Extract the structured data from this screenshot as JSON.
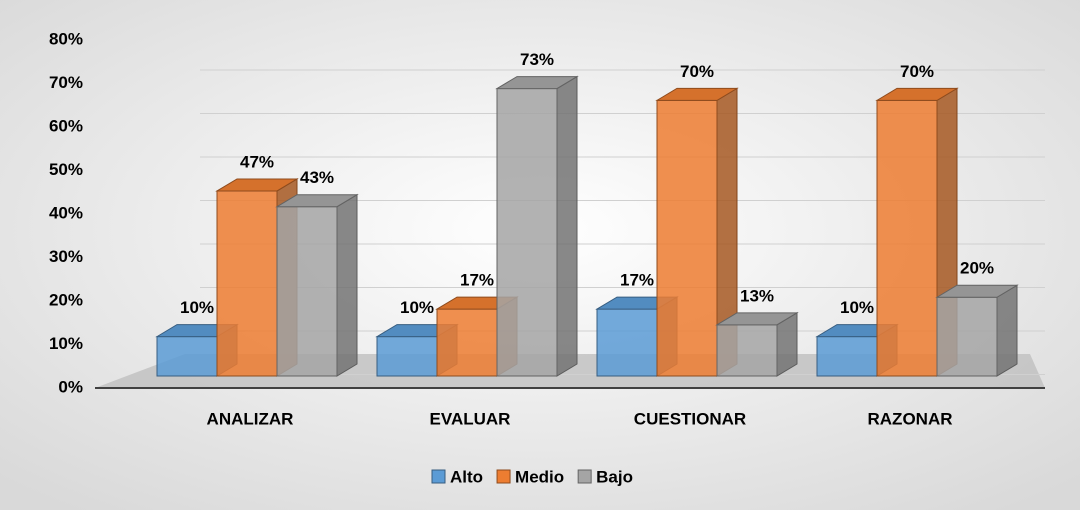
{
  "chart_data": {
    "type": "bar3d",
    "categories": [
      "ANALIZAR",
      "EVALUAR",
      "CUESTIONAR",
      "RAZONAR"
    ],
    "series": [
      {
        "name": "Alto",
        "color": "#5b9bd5",
        "values": [
          10,
          10,
          17,
          10
        ],
        "value_labels": [
          "10%",
          "10%",
          "17%",
          "10%"
        ]
      },
      {
        "name": "Medio",
        "color": "#ed7d31",
        "values": [
          47,
          17,
          70,
          70
        ],
        "value_labels": [
          "47%",
          "17%",
          "70%",
          "70%"
        ]
      },
      {
        "name": "Bajo",
        "color": "#a5a5a5",
        "values": [
          43,
          73,
          13,
          20
        ],
        "value_labels": [
          "43%",
          "73%",
          "13%",
          "20%"
        ]
      }
    ],
    "ylim": [
      0,
      80
    ],
    "yticks": [
      {
        "value": 0,
        "label": "0%"
      },
      {
        "value": 10,
        "label": "10%"
      },
      {
        "value": 20,
        "label": "20%"
      },
      {
        "value": 30,
        "label": "30%"
      },
      {
        "value": 40,
        "label": "40%"
      },
      {
        "value": 50,
        "label": "50%"
      },
      {
        "value": 60,
        "label": "60%"
      },
      {
        "value": 70,
        "label": "70%"
      },
      {
        "value": 80,
        "label": "80%"
      }
    ],
    "grid": true,
    "legend": "bottom"
  }
}
